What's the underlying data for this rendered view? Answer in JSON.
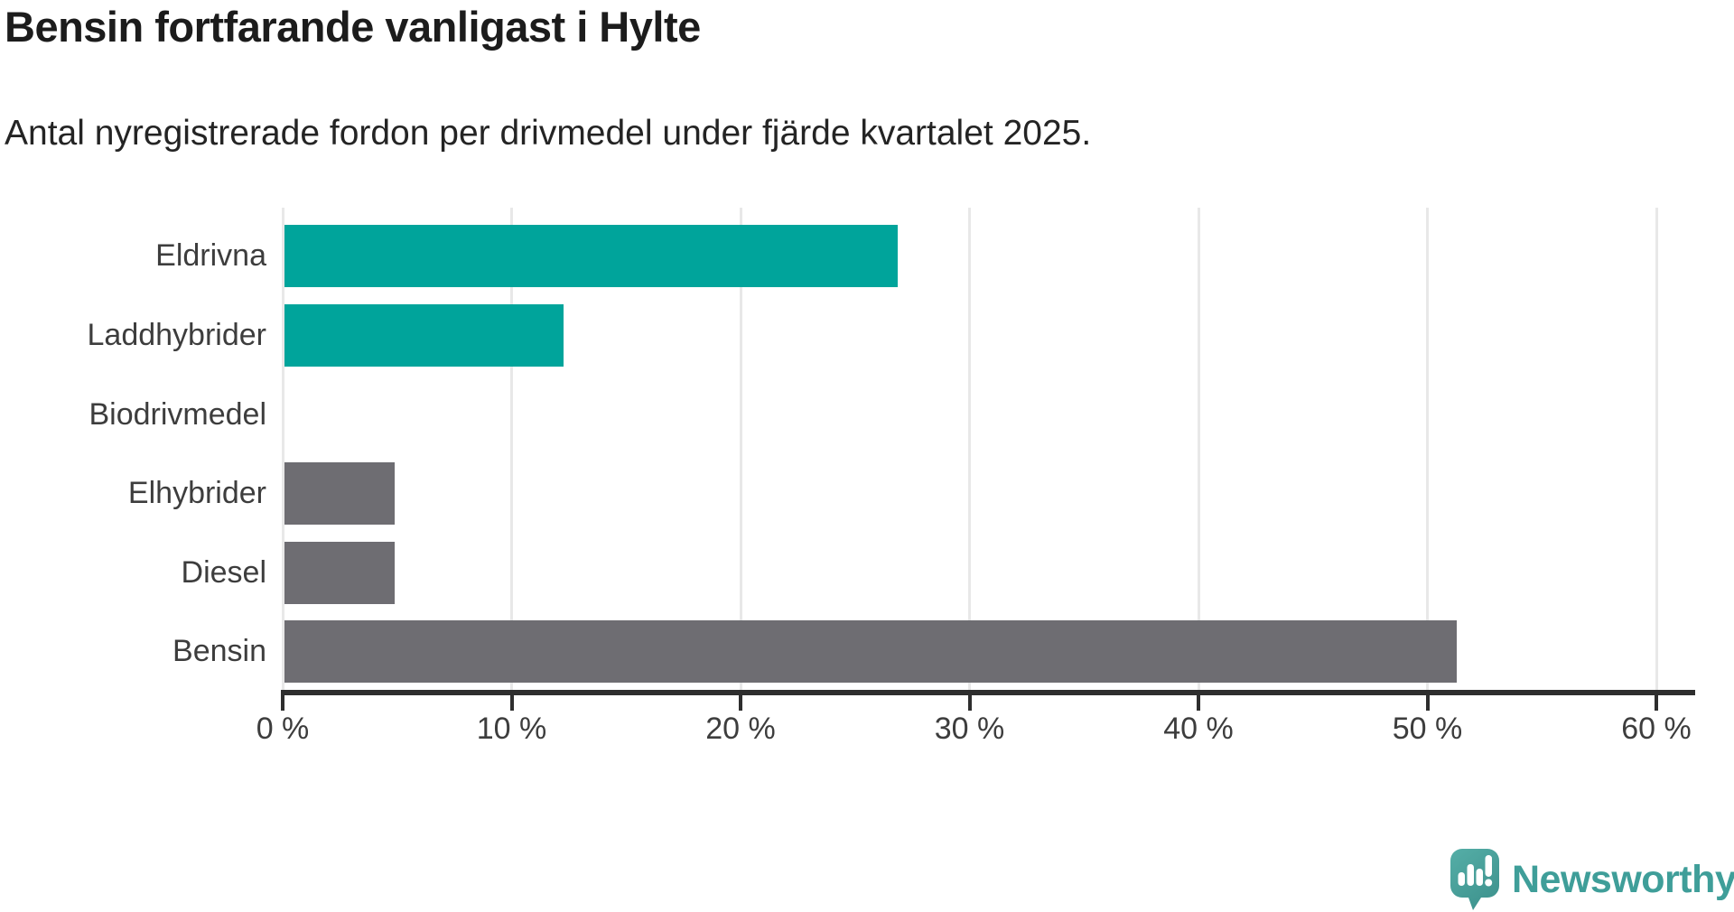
{
  "header": {
    "title": "Bensin fortfarande vanligast i Hylte",
    "subtitle": "Antal nyregistrerade fordon per drivmedel under fjärde kvartalet 2025."
  },
  "chart_data": {
    "type": "bar",
    "orientation": "horizontal",
    "title": "Bensin fortfarande vanligast i Hylte",
    "subtitle": "Antal nyregistrerade fordon per drivmedel under fjärde kvartalet 2025.",
    "categories": [
      "Eldrivna",
      "Laddhybrider",
      "Biodrivmedel",
      "Elhybrider",
      "Diesel",
      "Bensin"
    ],
    "values": [
      26.8,
      12.2,
      0,
      4.8,
      4.8,
      51.2
    ],
    "unit": "%",
    "xlim": [
      0,
      60
    ],
    "x_ticks": [
      0,
      10,
      20,
      30,
      40,
      50,
      60
    ],
    "x_tick_labels": [
      "0 %",
      "10 %",
      "20 %",
      "30 %",
      "40 %",
      "50 %",
      "60 %"
    ],
    "grid": "vertical-gridlines-on",
    "legend": "none",
    "bar_colors": [
      "#00a49b",
      "#00a49b",
      "#00a49b",
      "#6e6d72",
      "#6e6d72",
      "#6e6d72"
    ]
  },
  "branding": {
    "logo_text": "Newsworthy",
    "logo_color": "#3f9e99",
    "logo_icon": "speech-bubble-with-bar-chart-and-exclamation"
  },
  "colors": {
    "bar_teal": "#00a49b",
    "bar_gray": "#6e6d72",
    "axis": "#2e2e2e",
    "gridline": "#e8e8e8",
    "heading_text": "#1c1c1c",
    "label_text": "#3d3d3d",
    "background": "#ffffff"
  }
}
